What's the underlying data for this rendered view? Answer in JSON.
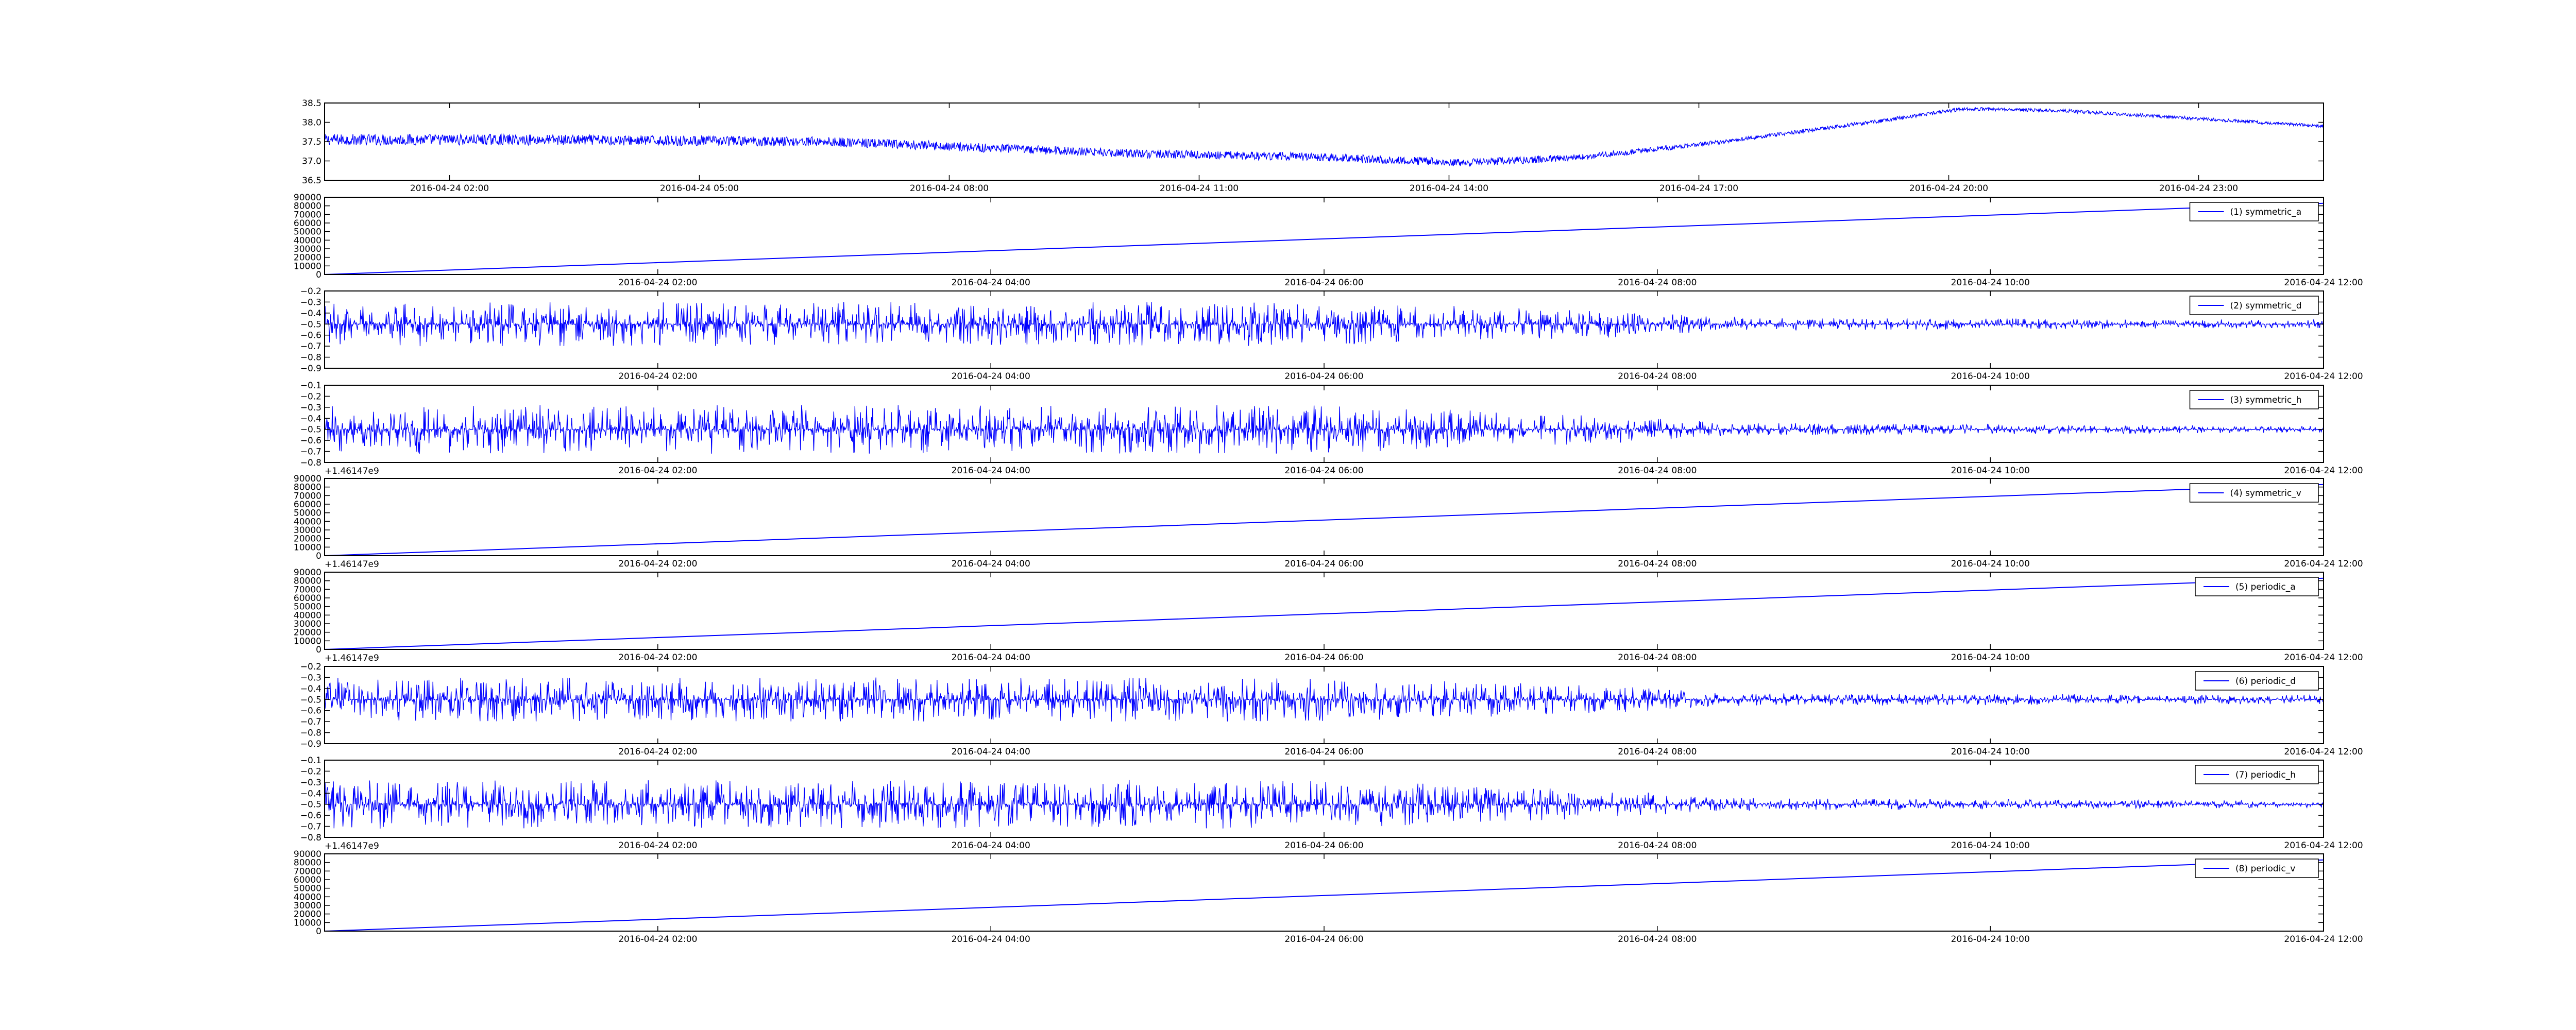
{
  "colors": {
    "line": "#0000ff",
    "axis": "#000000",
    "background": "#ffffff"
  },
  "chart_data": [
    {
      "type": "line",
      "legend": "",
      "offset_label": "",
      "ylim": [
        36.5,
        38.5
      ],
      "yticks": [
        "36.5",
        "37.0",
        "37.5",
        "38.0",
        "38.5"
      ],
      "xticks": [
        "2016-04-24 02:00",
        "2016-04-24 05:00",
        "2016-04-24 08:00",
        "2016-04-24 11:00",
        "2016-04-24 14:00",
        "2016-04-24 17:00",
        "2016-04-24 20:00",
        "2016-04-24 23:00"
      ],
      "xtick_fracs": [
        0.0625,
        0.1875,
        0.3125,
        0.4375,
        0.5625,
        0.6875,
        0.8125,
        0.9375
      ],
      "signal": {
        "kind": "noisy",
        "baseline": [
          [
            0,
            37.55
          ],
          [
            0.1,
            37.55
          ],
          [
            0.25,
            37.5
          ],
          [
            0.4,
            37.2
          ],
          [
            0.5,
            37.1
          ],
          [
            0.57,
            36.95
          ],
          [
            0.63,
            37.1
          ],
          [
            0.7,
            37.5
          ],
          [
            0.78,
            38.05
          ],
          [
            0.82,
            38.35
          ],
          [
            0.87,
            38.3
          ],
          [
            1.0,
            37.9
          ]
        ],
        "noise": [
          [
            0,
            0.15
          ],
          [
            0.3,
            0.12
          ],
          [
            0.6,
            0.1
          ],
          [
            0.7,
            0.05
          ],
          [
            1.0,
            0.04
          ]
        ]
      }
    },
    {
      "type": "line",
      "legend": "(1) symmetric_a",
      "offset_label": "",
      "ylim": [
        0,
        90000
      ],
      "yticks": [
        "0",
        "10000",
        "20000",
        "30000",
        "40000",
        "50000",
        "60000",
        "70000",
        "80000",
        "90000"
      ],
      "xticks": [
        "2016-04-24 02:00",
        "2016-04-24 04:00",
        "2016-04-24 06:00",
        "2016-04-24 08:00",
        "2016-04-24 10:00",
        "2016-04-24 12:00"
      ],
      "xtick_fracs": [
        0.1667,
        0.3333,
        0.5,
        0.6667,
        0.8333,
        1.0
      ],
      "signal": {
        "kind": "linear",
        "from": 0,
        "to": 83000
      }
    },
    {
      "type": "line",
      "legend": "(2) symmetric_d",
      "offset_label": "",
      "ylim": [
        -0.9,
        -0.2
      ],
      "yticks": [
        "−0.9",
        "−0.8",
        "−0.7",
        "−0.6",
        "−0.5",
        "−0.4",
        "−0.3",
        "−0.2"
      ],
      "xticks": [
        "2016-04-24 02:00",
        "2016-04-24 04:00",
        "2016-04-24 06:00",
        "2016-04-24 08:00",
        "2016-04-24 10:00",
        "2016-04-24 12:00"
      ],
      "xtick_fracs": [
        0.1667,
        0.3333,
        0.5,
        0.6667,
        0.8333,
        1.0
      ],
      "signal": {
        "kind": "spiky",
        "baseline": [
          [
            0,
            -0.5
          ],
          [
            1,
            -0.5
          ]
        ],
        "noise": [
          [
            0,
            0.2
          ],
          [
            0.5,
            0.2
          ],
          [
            0.65,
            0.12
          ],
          [
            0.7,
            0.06
          ],
          [
            1.0,
            0.04
          ]
        ]
      }
    },
    {
      "type": "line",
      "legend": "(3) symmetric_h",
      "offset_label": "+1.46147e9",
      "ylim": [
        -0.8,
        -0.1
      ],
      "yticks": [
        "−0.8",
        "−0.7",
        "−0.6",
        "−0.5",
        "−0.4",
        "−0.3",
        "−0.2",
        "−0.1"
      ],
      "xticks": [
        "2016-04-24 02:00",
        "2016-04-24 04:00",
        "2016-04-24 06:00",
        "2016-04-24 08:00",
        "2016-04-24 10:00",
        "2016-04-24 12:00"
      ],
      "xtick_fracs": [
        0.1667,
        0.3333,
        0.5,
        0.6667,
        0.8333,
        1.0
      ],
      "signal": {
        "kind": "spiky",
        "baseline": [
          [
            0,
            -0.5
          ],
          [
            1,
            -0.5
          ]
        ],
        "noise": [
          [
            0,
            0.22
          ],
          [
            0.5,
            0.22
          ],
          [
            0.65,
            0.12
          ],
          [
            0.7,
            0.06
          ],
          [
            1.0,
            0.03
          ]
        ]
      }
    },
    {
      "type": "line",
      "legend": "(4) symmetric_v",
      "offset_label": "+1.46147e9",
      "ylim": [
        0,
        90000
      ],
      "yticks": [
        "0",
        "10000",
        "20000",
        "30000",
        "40000",
        "50000",
        "60000",
        "70000",
        "80000",
        "90000"
      ],
      "xticks": [
        "2016-04-24 02:00",
        "2016-04-24 04:00",
        "2016-04-24 06:00",
        "2016-04-24 08:00",
        "2016-04-24 10:00",
        "2016-04-24 12:00"
      ],
      "xtick_fracs": [
        0.1667,
        0.3333,
        0.5,
        0.6667,
        0.8333,
        1.0
      ],
      "signal": {
        "kind": "linear",
        "from": 0,
        "to": 83000
      }
    },
    {
      "type": "line",
      "legend": "(5) periodic_a",
      "offset_label": "+1.46147e9",
      "ylim": [
        0,
        90000
      ],
      "yticks": [
        "0",
        "10000",
        "20000",
        "30000",
        "40000",
        "50000",
        "60000",
        "70000",
        "80000",
        "90000"
      ],
      "xticks": [
        "2016-04-24 02:00",
        "2016-04-24 04:00",
        "2016-04-24 06:00",
        "2016-04-24 08:00",
        "2016-04-24 10:00",
        "2016-04-24 12:00"
      ],
      "xtick_fracs": [
        0.1667,
        0.3333,
        0.5,
        0.6667,
        0.8333,
        1.0
      ],
      "signal": {
        "kind": "linear",
        "from": 0,
        "to": 83000
      }
    },
    {
      "type": "line",
      "legend": "(6) periodic_d",
      "offset_label": "",
      "ylim": [
        -0.9,
        -0.2
      ],
      "yticks": [
        "−0.9",
        "−0.8",
        "−0.7",
        "−0.6",
        "−0.5",
        "−0.4",
        "−0.3",
        "−0.2"
      ],
      "xticks": [
        "2016-04-24 02:00",
        "2016-04-24 04:00",
        "2016-04-24 06:00",
        "2016-04-24 08:00",
        "2016-04-24 10:00",
        "2016-04-24 12:00"
      ],
      "xtick_fracs": [
        0.1667,
        0.3333,
        0.5,
        0.6667,
        0.8333,
        1.0
      ],
      "signal": {
        "kind": "spiky",
        "baseline": [
          [
            0,
            -0.5
          ],
          [
            1,
            -0.5
          ]
        ],
        "noise": [
          [
            0,
            0.2
          ],
          [
            0.5,
            0.2
          ],
          [
            0.65,
            0.12
          ],
          [
            0.7,
            0.06
          ],
          [
            1.0,
            0.04
          ]
        ]
      }
    },
    {
      "type": "line",
      "legend": "(7) periodic_h",
      "offset_label": "+1.46147e9",
      "ylim": [
        -0.8,
        -0.1
      ],
      "yticks": [
        "−0.8",
        "−0.7",
        "−0.6",
        "−0.5",
        "−0.4",
        "−0.3",
        "−0.2",
        "−0.1"
      ],
      "xticks": [
        "2016-04-24 02:00",
        "2016-04-24 04:00",
        "2016-04-24 06:00",
        "2016-04-24 08:00",
        "2016-04-24 10:00",
        "2016-04-24 12:00"
      ],
      "xtick_fracs": [
        0.1667,
        0.3333,
        0.5,
        0.6667,
        0.8333,
        1.0
      ],
      "signal": {
        "kind": "spiky",
        "baseline": [
          [
            0,
            -0.5
          ],
          [
            1,
            -0.5
          ]
        ],
        "noise": [
          [
            0,
            0.22
          ],
          [
            0.5,
            0.22
          ],
          [
            0.65,
            0.12
          ],
          [
            0.7,
            0.06
          ],
          [
            1.0,
            0.03
          ]
        ]
      }
    },
    {
      "type": "line",
      "legend": "(8) periodic_v",
      "offset_label": "",
      "ylim": [
        0,
        90000
      ],
      "yticks": [
        "0",
        "10000",
        "20000",
        "30000",
        "40000",
        "50000",
        "60000",
        "70000",
        "80000",
        "90000"
      ],
      "xticks": [
        "2016-04-24 02:00",
        "2016-04-24 04:00",
        "2016-04-24 06:00",
        "2016-04-24 08:00",
        "2016-04-24 10:00",
        "2016-04-24 12:00"
      ],
      "xtick_fracs": [
        0.1667,
        0.3333,
        0.5,
        0.6667,
        0.8333,
        1.0
      ],
      "signal": {
        "kind": "linear",
        "from": 0,
        "to": 83000
      }
    }
  ]
}
